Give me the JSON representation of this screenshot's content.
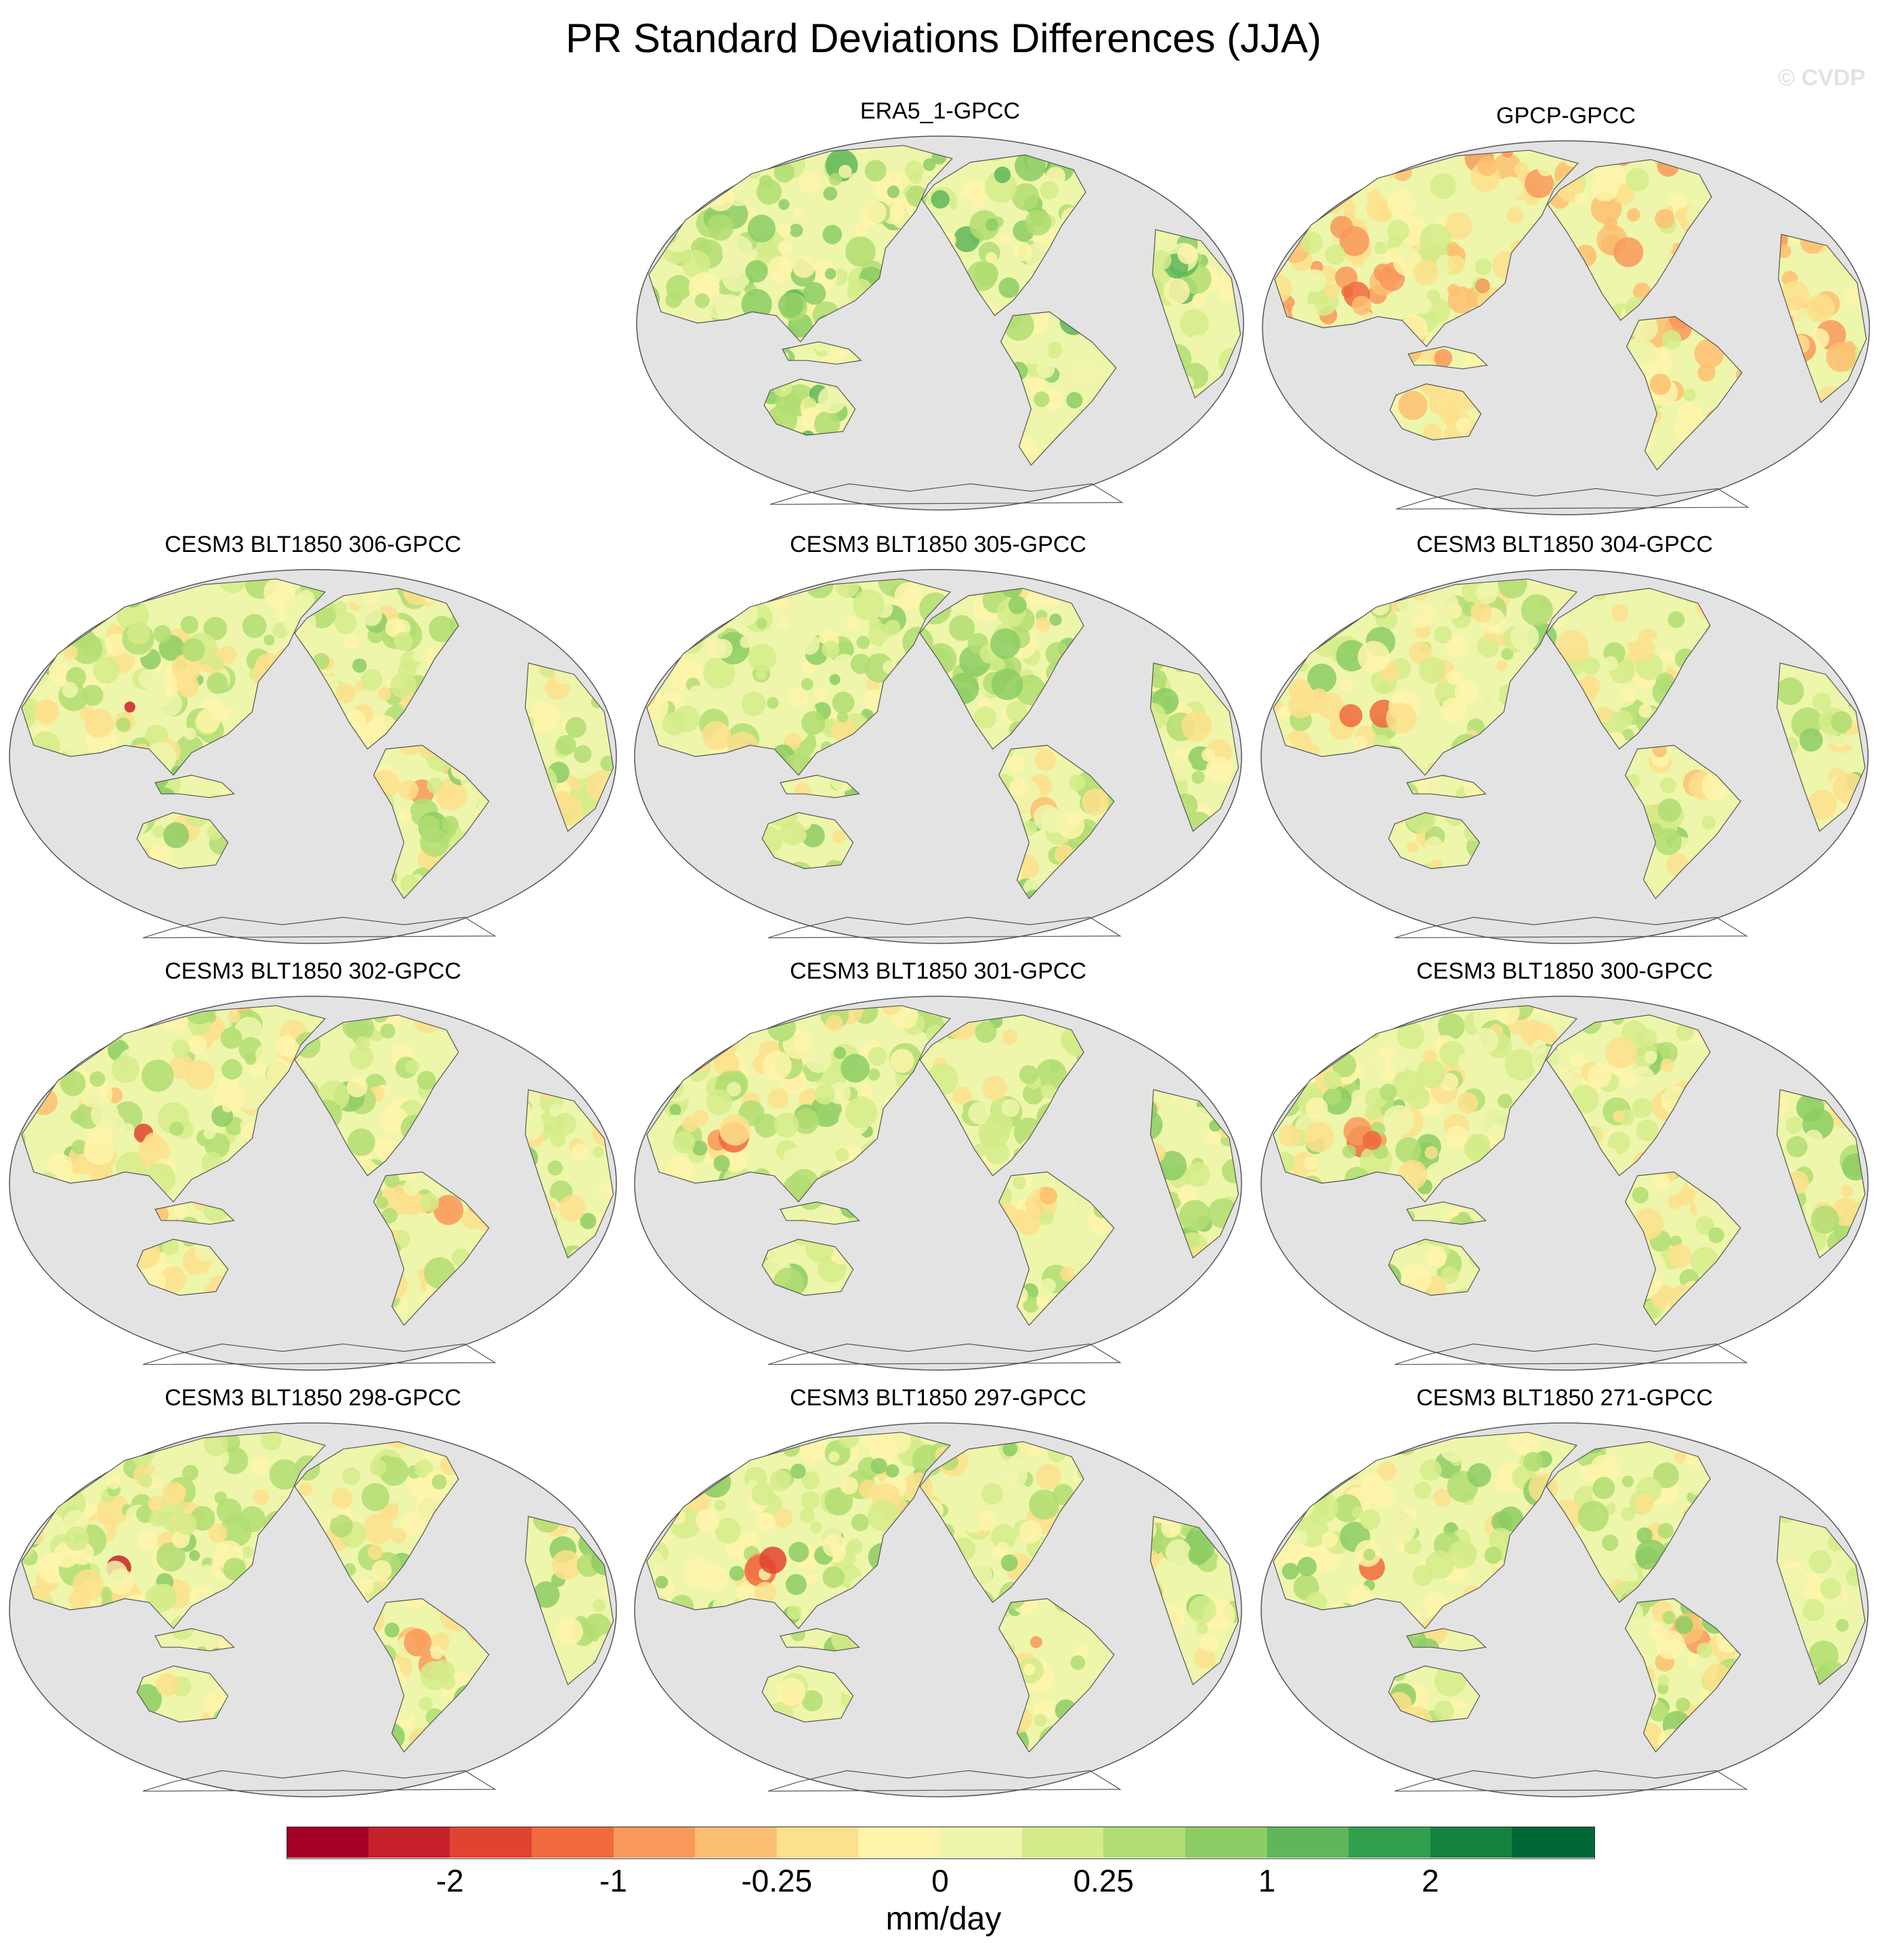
{
  "title": "PR Standard Deviations Differences (JJA)",
  "watermark": "© CVDP",
  "panels": [
    {
      "label": "ERA5_1-GPCC",
      "bias": 0.6,
      "hot": 0
    },
    {
      "label": "GPCP-GPCC",
      "bias": -0.5,
      "hot": 0
    },
    {
      "label": "CESM3 BLT1850 306-GPCC",
      "bias": 0.2,
      "hot": 1
    },
    {
      "label": "CESM3 BLT1850 305-GPCC",
      "bias": 0.3,
      "hot": 1
    },
    {
      "label": "CESM3 BLT1850 304-GPCC",
      "bias": 0.1,
      "hot": 1
    },
    {
      "label": "CESM3 BLT1850 302-GPCC",
      "bias": 0.1,
      "hot": 1
    },
    {
      "label": "CESM3 BLT1850 301-GPCC",
      "bias": 0.2,
      "hot": 1
    },
    {
      "label": "CESM3 BLT1850 300-GPCC",
      "bias": 0.2,
      "hot": 1
    },
    {
      "label": "CESM3 BLT1850 298-GPCC",
      "bias": 0.2,
      "hot": 1
    },
    {
      "label": "CESM3 BLT1850 297-GPCC",
      "bias": 0.3,
      "hot": 1
    },
    {
      "label": "CESM3 BLT1850 271-GPCC",
      "bias": 0.3,
      "hot": 1
    }
  ],
  "colorbar": {
    "unit": "mm/day",
    "colors": [
      "#a50026",
      "#c8202a",
      "#e04430",
      "#f06a3d",
      "#f8995a",
      "#fdbf71",
      "#fde08c",
      "#fef4aa",
      "#eef6ab",
      "#d4ec8a",
      "#b2dd72",
      "#8ccc64",
      "#5fb65b",
      "#30a04f",
      "#13833f",
      "#006837"
    ],
    "tick_labels": [
      "-2",
      "-1",
      "-0.25",
      "0",
      "0.25",
      "1",
      "2"
    ]
  },
  "map_colors": {
    "ocean": "#e3e3e3",
    "coast": "#555555",
    "border": "#555555"
  }
}
